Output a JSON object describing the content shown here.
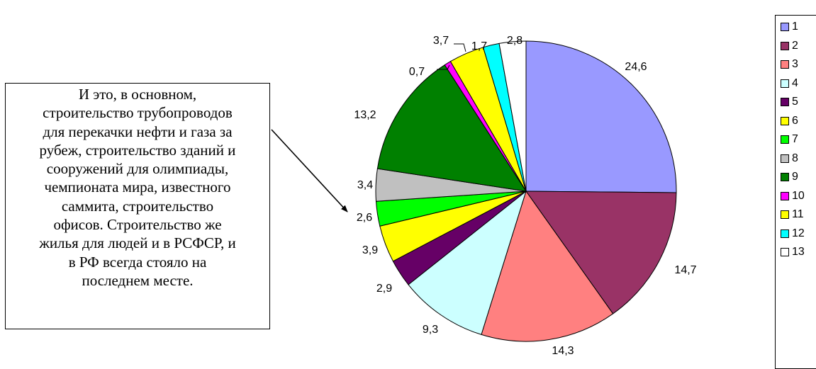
{
  "chart_data": {
    "type": "pie",
    "title": "",
    "values": [
      24.6,
      14.7,
      14.3,
      9.3,
      2.9,
      3.9,
      2.6,
      3.4,
      13.2,
      0.7,
      3.7,
      1.7,
      2.8
    ],
    "labels": [
      "24,6",
      "14,7",
      "14,3",
      "9,3",
      "2,9",
      "3,9",
      "2,6",
      "3,4",
      "13,2",
      "0,7",
      "3,7",
      "1,7",
      "2,8"
    ],
    "legend": [
      "1",
      "2",
      "3",
      "4",
      "5",
      "6",
      "7",
      "8",
      "9",
      "10",
      "11",
      "12",
      "13"
    ],
    "colors": [
      "#9999ff",
      "#993366",
      "#ff8080",
      "#ccffff",
      "#660066",
      "#ffff00",
      "#00ff00",
      "#c0c0c0",
      "#008000",
      "#ff00ff",
      "#ffff00",
      "#00ffff",
      "#ffffff"
    ],
    "legend_position": "right"
  },
  "callout": {
    "lines": [
      "И это, в основном,",
      "строительство трубопроводов",
      "для перекачки нефти и газа за",
      "рубеж, строительство зданий и",
      "сооружений для олимпиады,",
      "чемпионата мира, известного",
      "саммита, строительство",
      "офисов. Строительство же",
      "жилья для людей и в РСФСР, и",
      "в РФ всегда стояло на",
      "последнем месте."
    ]
  }
}
